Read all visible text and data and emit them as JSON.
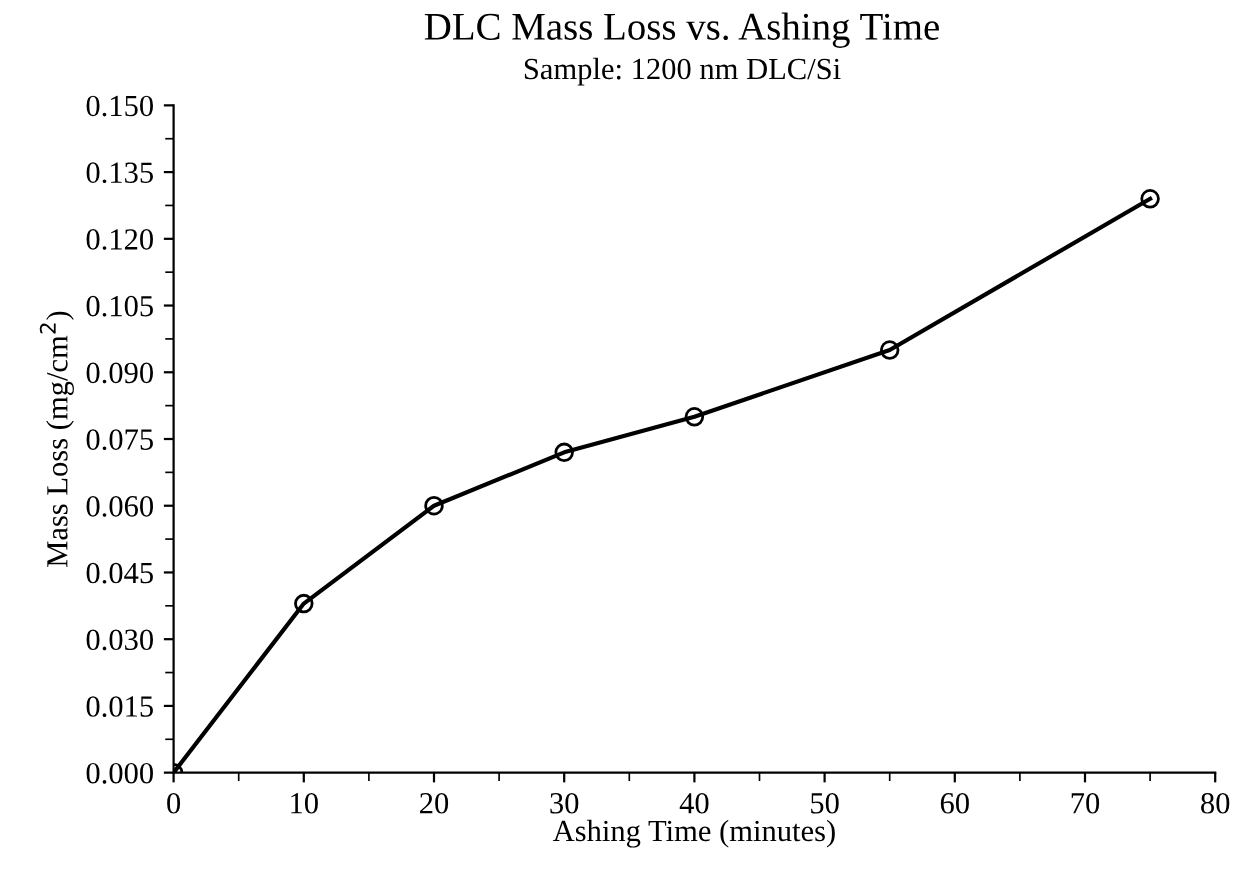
{
  "chart_data": {
    "type": "line",
    "title": "DLC Mass Loss vs. Ashing Time",
    "subtitle": "Sample: 1200 nm DLC/Si",
    "xlabel": "Ashing Time (minutes)",
    "ylabel": "Mass Loss (mg/cm$^{2}$)",
    "x": [
      0,
      10,
      20,
      30,
      40,
      55,
      75
    ],
    "series": [
      {
        "color": "#000000",
        "values": [
          0.0,
          0.038,
          0.06,
          0.072,
          0.08,
          0.095,
          0.129
        ]
      }
    ],
    "xlim": [
      0,
      80
    ],
    "xticks": [
      0,
      10,
      20,
      30,
      40,
      50,
      60,
      70,
      80
    ],
    "ylim": [
      0,
      0.15
    ],
    "yticks": [
      {
        "value": 0,
        "label": "0.000"
      },
      {
        "value": 0.015,
        "label": "0.015"
      },
      {
        "value": 0.03,
        "label": "0.030"
      },
      {
        "value": 0.045,
        "label": "0.045"
      },
      {
        "value": 0.06,
        "label": "0.060"
      },
      {
        "value": 0.075,
        "label": "0.075"
      },
      {
        "value": 0.09,
        "label": "0.090"
      },
      {
        "value": 0.105,
        "label": "0.105"
      },
      {
        "value": 0.12,
        "label": "0.120"
      },
      {
        "value": 0.135,
        "label": "0.135"
      },
      {
        "value": 0.15,
        "label": "0.150"
      }
    ],
    "grid": false,
    "legend": false,
    "marker": "circle",
    "line_style": "solid"
  }
}
